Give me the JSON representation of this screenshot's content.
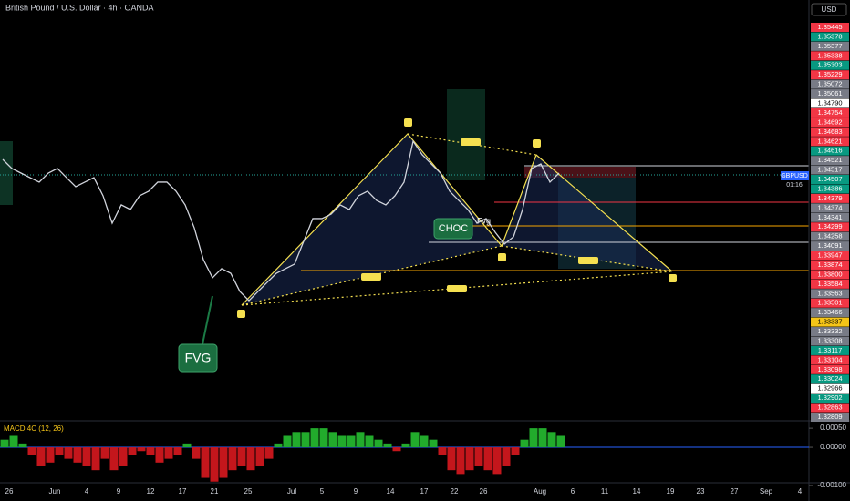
{
  "header": {
    "title": "British Pound / U.S. Dollar · 4h · OANDA"
  },
  "price_axis": {
    "currency": "USD",
    "labels": [
      {
        "text": "1.35445",
        "color": "#f23645"
      },
      {
        "text": "1.35378",
        "color": "#089981"
      },
      {
        "text": "1.35377",
        "color": "#787b86"
      },
      {
        "text": "1.35338",
        "color": "#f23645"
      },
      {
        "text": "1.35303",
        "color": "#089981"
      },
      {
        "text": "1.35229",
        "color": "#f23645"
      },
      {
        "text": "1.35072",
        "color": "#787b86"
      },
      {
        "text": "1.35061",
        "color": "#787b86"
      },
      {
        "text": "1.34790",
        "color": "#ffffff"
      },
      {
        "text": "1.34754",
        "color": "#f23645"
      },
      {
        "text": "1.34692",
        "color": "#f23645"
      },
      {
        "text": "1.34683",
        "color": "#f23645"
      },
      {
        "text": "1.34621",
        "color": "#f23645"
      },
      {
        "text": "1.34616",
        "color": "#089981"
      },
      {
        "text": "1.34521",
        "color": "#787b86"
      },
      {
        "text": "1.34517",
        "color": "#787b86"
      },
      {
        "text": "1.34507",
        "color": "#089981"
      },
      {
        "text": "1.34386",
        "color": "#089981"
      },
      {
        "text": "1.34379",
        "color": "#f23645"
      },
      {
        "text": "1.34374",
        "color": "#787b86"
      },
      {
        "text": "1.34341",
        "color": "#787b86"
      },
      {
        "text": "1.34299",
        "color": "#f23645"
      },
      {
        "text": "1.34258",
        "color": "#787b86"
      },
      {
        "text": "1.34091",
        "color": "#787b86"
      },
      {
        "text": "1.33947",
        "color": "#f23645"
      },
      {
        "text": "1.33874",
        "color": "#f23645"
      },
      {
        "text": "1.33800",
        "color": "#f23645"
      },
      {
        "text": "1.33584",
        "color": "#f23645"
      },
      {
        "text": "1.33563",
        "color": "#787b86"
      },
      {
        "text": "1.33501",
        "color": "#f23645"
      },
      {
        "text": "1.33466",
        "color": "#787b86"
      },
      {
        "text": "1.33337",
        "color": "#f5c518"
      },
      {
        "text": "1.33332",
        "color": "#787b86"
      },
      {
        "text": "1.33308",
        "color": "#787b86"
      },
      {
        "text": "1.33117",
        "color": "#089981"
      },
      {
        "text": "1.33104",
        "color": "#f23645"
      },
      {
        "text": "1.33098",
        "color": "#f23645"
      },
      {
        "text": "1.33024",
        "color": "#089981"
      },
      {
        "text": "1.32966",
        "color": "#ffffff"
      },
      {
        "text": "1.32902",
        "color": "#089981"
      },
      {
        "text": "1.32863",
        "color": "#f23645"
      },
      {
        "text": "1.32809",
        "color": "#787b86"
      }
    ]
  },
  "symbol_tag": {
    "symbol": "GBPUSD",
    "countdown": "01:16"
  },
  "annotations": {
    "fvg": "FVG",
    "choc": "CHOC",
    "fvg_small": "Fvg"
  },
  "date_axis": [
    "26",
    "Jun",
    "4",
    "9",
    "12",
    "17",
    "21",
    "25",
    "Jul",
    "5",
    "9",
    "14",
    "17",
    "22",
    "26",
    "Aug",
    "6",
    "11",
    "14",
    "19",
    "23",
    "27",
    "Sep",
    "4"
  ],
  "price": {
    "ylim": [
      1.326,
      1.358
    ],
    "color": "#d1d4dc",
    "closes": [
      1.34588,
      1.34519,
      1.34484,
      1.34449,
      1.34415,
      1.34484,
      1.34519,
      1.34449,
      1.3438,
      1.34415,
      1.34449,
      1.34311,
      1.34103,
      1.34242,
      1.34207,
      1.34311,
      1.34346,
      1.34415,
      1.34415,
      1.34346,
      1.34242,
      1.34068,
      1.33826,
      1.33688,
      1.33757,
      1.33722,
      1.33584,
      1.33514,
      1.33584,
      1.33653,
      1.33722,
      1.33757,
      1.33792,
      1.33965,
      1.34138,
      1.34138,
      1.34172,
      1.34242,
      1.34207,
      1.34311,
      1.34346,
      1.34276,
      1.34242,
      1.34311,
      1.34415,
      1.34726,
      1.34623,
      1.34553,
      1.34484,
      1.34346,
      1.34276,
      1.34207,
      1.34103,
      1.34138,
      1.34034,
      1.33944,
      1.33999,
      1.34207,
      1.34519,
      1.34553,
      1.34415,
      1.34484
    ]
  },
  "macd": {
    "label": "MACD 4C (12, 26)",
    "ylim": [
      -0.00093,
      0.00067
    ],
    "up_color": "#22ab2c",
    "down_color": "#c4161c",
    "ticks": [
      {
        "value": 0.0005,
        "label": "0.00050"
      },
      {
        "value": 0,
        "label": "0.00000"
      },
      {
        "value": -0.001,
        "label": "-0.00100"
      }
    ],
    "values": [
      0.0002,
      0.0003,
      0.0001,
      -0.0002,
      -0.0005,
      -0.0004,
      -0.0002,
      -0.0003,
      -0.0004,
      -0.0005,
      -0.0006,
      -0.0003,
      -0.0006,
      -0.0005,
      -0.0002,
      -0.0001,
      -0.0002,
      -0.0004,
      -0.0003,
      -0.0002,
      0.0001,
      -0.0003,
      -0.0008,
      -0.0009,
      -0.0008,
      -0.0006,
      -0.0005,
      -0.0006,
      -0.0005,
      -0.0003,
      0.0001,
      0.0003,
      0.0004,
      0.0004,
      0.0005,
      0.0005,
      0.0004,
      0.0003,
      0.0003,
      0.0004,
      0.0003,
      0.0002,
      0.0001,
      -0.0001,
      0.0001,
      0.0004,
      0.0003,
      0.0002,
      -0.0002,
      -0.0006,
      -0.0007,
      -0.0006,
      -0.0005,
      -0.0006,
      -0.0007,
      -0.0005,
      -0.0002,
      0.0002,
      0.0005,
      0.0005,
      0.0004,
      0.0003
    ]
  }
}
